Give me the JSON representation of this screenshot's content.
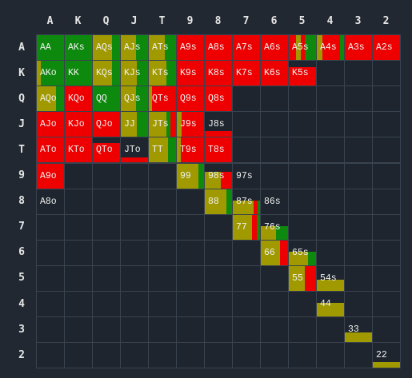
{
  "ranks": [
    "A",
    "K",
    "Q",
    "J",
    "T",
    "9",
    "8",
    "7",
    "6",
    "5",
    "4",
    "3",
    "2"
  ],
  "colors": {
    "fold": "#ee0000",
    "call": "#a09a00",
    "raise": "#0d8a0d",
    "empty": "#1e252e",
    "border": "#394350"
  },
  "cells": {
    "AA": {
      "label": "AA",
      "fill": 1.0,
      "mix": [
        [
          "raise",
          1.0
        ]
      ]
    },
    "AKs": {
      "label": "AKs",
      "fill": 1.0,
      "mix": [
        [
          "raise",
          1.0
        ]
      ]
    },
    "AQs": {
      "label": "AQs",
      "fill": 1.0,
      "mix": [
        [
          "call",
          0.72
        ],
        [
          "raise",
          0.28
        ]
      ]
    },
    "AJs": {
      "label": "AJs",
      "fill": 1.0,
      "mix": [
        [
          "call",
          0.55
        ],
        [
          "raise",
          0.45
        ]
      ]
    },
    "ATs": {
      "label": "ATs",
      "fill": 1.0,
      "mix": [
        [
          "call",
          0.6
        ],
        [
          "raise",
          0.4
        ]
      ]
    },
    "A9s": {
      "label": "A9s",
      "fill": 1.0,
      "mix": [
        [
          "fold",
          1.0
        ]
      ]
    },
    "A8s": {
      "label": "A8s",
      "fill": 1.0,
      "mix": [
        [
          "fold",
          1.0
        ]
      ]
    },
    "A7s": {
      "label": "A7s",
      "fill": 1.0,
      "mix": [
        [
          "fold",
          1.0
        ]
      ]
    },
    "A6s": {
      "label": "A6s",
      "fill": 1.0,
      "mix": [
        [
          "fold",
          1.0
        ]
      ]
    },
    "A5s": {
      "label": "A5s",
      "fill": 1.0,
      "mix": [
        [
          "fold",
          0.25
        ],
        [
          "call",
          0.2
        ],
        [
          "fold",
          0.15
        ],
        [
          "raise",
          0.4
        ]
      ]
    },
    "A4s": {
      "label": "A4s",
      "fill": 1.0,
      "mix": [
        [
          "call",
          0.2
        ],
        [
          "fold",
          0.65
        ],
        [
          "raise",
          0.15
        ]
      ]
    },
    "A3s": {
      "label": "A3s",
      "fill": 1.0,
      "mix": [
        [
          "fold",
          1.0
        ]
      ]
    },
    "A2s": {
      "label": "A2s",
      "fill": 1.0,
      "mix": [
        [
          "fold",
          1.0
        ]
      ]
    },
    "AKo": {
      "label": "AKo",
      "fill": 1.0,
      "mix": [
        [
          "call",
          0.15
        ],
        [
          "raise",
          0.85
        ]
      ]
    },
    "KK": {
      "label": "KK",
      "fill": 1.0,
      "mix": [
        [
          "raise",
          1.0
        ]
      ]
    },
    "KQs": {
      "label": "KQs",
      "fill": 1.0,
      "mix": [
        [
          "call",
          0.7
        ],
        [
          "raise",
          0.3
        ]
      ]
    },
    "KJs": {
      "label": "KJs",
      "fill": 1.0,
      "mix": [
        [
          "call",
          0.6
        ],
        [
          "raise",
          0.4
        ]
      ]
    },
    "KTs": {
      "label": "KTs",
      "fill": 1.0,
      "mix": [
        [
          "call",
          0.65
        ],
        [
          "raise",
          0.35
        ]
      ]
    },
    "K9s": {
      "label": "K9s",
      "fill": 1.0,
      "mix": [
        [
          "fold",
          1.0
        ]
      ]
    },
    "K8s": {
      "label": "K8s",
      "fill": 1.0,
      "mix": [
        [
          "fold",
          1.0
        ]
      ]
    },
    "K7s": {
      "label": "K7s",
      "fill": 1.0,
      "mix": [
        [
          "fold",
          1.0
        ]
      ]
    },
    "K6s": {
      "label": "K6s",
      "fill": 1.0,
      "mix": [
        [
          "fold",
          1.0
        ]
      ]
    },
    "K5s": {
      "label": "K5s",
      "fill": 0.75,
      "mix": [
        [
          "fold",
          1.0
        ]
      ]
    },
    "K4s": {
      "label": "",
      "fill": 0,
      "mix": []
    },
    "K3s": {
      "label": "",
      "fill": 0,
      "mix": []
    },
    "K2s": {
      "label": "",
      "fill": 0,
      "mix": []
    },
    "AQo": {
      "label": "AQo",
      "fill": 1.0,
      "mix": [
        [
          "call",
          0.72
        ],
        [
          "raise",
          0.28
        ]
      ]
    },
    "KQo": {
      "label": "KQo",
      "fill": 1.0,
      "mix": [
        [
          "fold",
          1.0
        ]
      ]
    },
    "QQ": {
      "label": "QQ",
      "fill": 1.0,
      "mix": [
        [
          "raise",
          1.0
        ]
      ]
    },
    "QJs": {
      "label": "QJs",
      "fill": 1.0,
      "mix": [
        [
          "call",
          0.55
        ],
        [
          "raise",
          0.45
        ]
      ]
    },
    "QTs": {
      "label": "QTs",
      "fill": 1.0,
      "mix": [
        [
          "call",
          0.12
        ],
        [
          "fold",
          0.88
        ]
      ]
    },
    "Q9s": {
      "label": "Q9s",
      "fill": 1.0,
      "mix": [
        [
          "fold",
          1.0
        ]
      ]
    },
    "Q8s": {
      "label": "Q8s",
      "fill": 1.0,
      "mix": [
        [
          "fold",
          1.0
        ]
      ]
    },
    "AJo": {
      "label": "AJo",
      "fill": 1.0,
      "mix": [
        [
          "fold",
          1.0
        ]
      ]
    },
    "KJo": {
      "label": "KJo",
      "fill": 1.0,
      "mix": [
        [
          "fold",
          1.0
        ]
      ]
    },
    "QJo": {
      "label": "QJo",
      "fill": 1.0,
      "mix": [
        [
          "fold",
          1.0
        ]
      ]
    },
    "JJ": {
      "label": "JJ",
      "fill": 1.0,
      "mix": [
        [
          "call",
          0.6
        ],
        [
          "raise",
          0.4
        ]
      ]
    },
    "JTs": {
      "label": "JTs",
      "fill": 1.0,
      "mix": [
        [
          "call",
          0.65
        ],
        [
          "raise",
          0.15
        ],
        [
          "fold",
          0.2
        ]
      ]
    },
    "J9s": {
      "label": "J9s",
      "fill": 1.0,
      "mix": [
        [
          "call",
          0.18
        ],
        [
          "fold",
          0.82
        ]
      ]
    },
    "J8s": {
      "label": "J8s",
      "fill": 0.25,
      "mix": [
        [
          "fold",
          1.0
        ]
      ]
    },
    "ATo": {
      "label": "ATo",
      "fill": 1.0,
      "mix": [
        [
          "fold",
          1.0
        ]
      ]
    },
    "KTo": {
      "label": "KTo",
      "fill": 1.0,
      "mix": [
        [
          "fold",
          1.0
        ]
      ]
    },
    "QTo": {
      "label": "QTo",
      "fill": 0.8,
      "mix": [
        [
          "fold",
          1.0
        ]
      ]
    },
    "JTo": {
      "label": "JTo",
      "fill": 0.22,
      "mix": [
        [
          "fold",
          1.0
        ]
      ]
    },
    "TT": {
      "label": "TT",
      "fill": 1.0,
      "mix": [
        [
          "call",
          0.72
        ],
        [
          "raise",
          0.28
        ]
      ]
    },
    "T9s": {
      "label": "T9s",
      "fill": 1.0,
      "mix": [
        [
          "call",
          0.15
        ],
        [
          "fold",
          0.85
        ]
      ]
    },
    "T8s": {
      "label": "T8s",
      "fill": 1.0,
      "mix": [
        [
          "fold",
          1.0
        ]
      ]
    },
    "A9o": {
      "label": "A9o",
      "fill": 1.0,
      "mix": [
        [
          "fold",
          1.0
        ]
      ]
    },
    "99": {
      "label": "99",
      "fill": 1.0,
      "mix": [
        [
          "call",
          0.8
        ],
        [
          "raise",
          0.2
        ]
      ]
    },
    "98s": {
      "label": "98s",
      "fill": 0.65,
      "mix": [
        [
          "call",
          0.6
        ],
        [
          "fold",
          0.4
        ]
      ]
    },
    "97s": {
      "label": "97s",
      "fill": 0.0,
      "mix": []
    },
    "A8o": {
      "label": "A8o",
      "fill": 0,
      "mix": []
    },
    "88": {
      "label": "88",
      "fill": 1.0,
      "mix": [
        [
          "call",
          0.8
        ],
        [
          "raise",
          0.2
        ]
      ]
    },
    "87s": {
      "label": "87s",
      "fill": 0.55,
      "mix": [
        [
          "call",
          0.75
        ],
        [
          "fold",
          0.15
        ],
        [
          "raise",
          0.1
        ]
      ]
    },
    "86s": {
      "label": "86s",
      "fill": 0,
      "mix": []
    },
    "77": {
      "label": "77",
      "fill": 1.0,
      "mix": [
        [
          "call",
          0.72
        ],
        [
          "fold",
          0.15
        ],
        [
          "raise",
          0.13
        ]
      ]
    },
    "76s": {
      "label": "76s",
      "fill": 0.55,
      "mix": [
        [
          "call",
          0.55
        ],
        [
          "raise",
          0.45
        ]
      ]
    },
    "66": {
      "label": "66",
      "fill": 1.0,
      "mix": [
        [
          "call",
          0.7
        ],
        [
          "fold",
          0.3
        ]
      ]
    },
    "65s": {
      "label": "65s",
      "fill": 0.55,
      "mix": [
        [
          "call",
          0.7
        ],
        [
          "raise",
          0.3
        ]
      ]
    },
    "55": {
      "label": "55",
      "fill": 1.0,
      "mix": [
        [
          "call",
          0.6
        ],
        [
          "fold",
          0.4
        ]
      ]
    },
    "54s": {
      "label": "54s",
      "fill": 0.45,
      "mix": [
        [
          "call",
          1.0
        ]
      ]
    },
    "44": {
      "label": "44",
      "fill": 0.55,
      "mix": [
        [
          "call",
          1.0
        ]
      ]
    },
    "33": {
      "label": "33",
      "fill": 0.4,
      "mix": [
        [
          "call",
          1.0
        ]
      ]
    },
    "22": {
      "label": "22",
      "fill": 0.25,
      "mix": [
        [
          "call",
          1.0
        ]
      ]
    }
  }
}
